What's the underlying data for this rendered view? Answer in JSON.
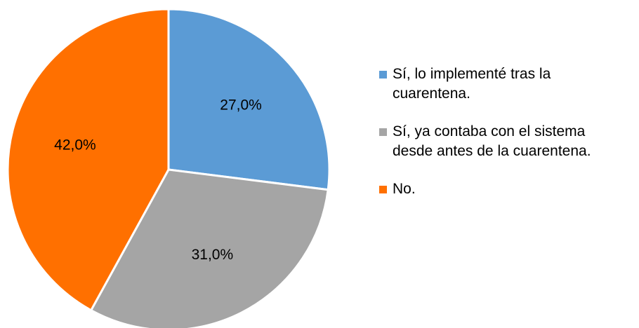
{
  "chart_data": {
    "type": "pie",
    "categories": [
      "Sí, lo implementé tras la cuarentena.",
      "Sí, ya contaba con el sistema desde antes de la cuarentena.",
      "No."
    ],
    "values": [
      27,
      31,
      42
    ],
    "value_labels": [
      "27,0%",
      "31,0%",
      "42,0%"
    ],
    "colors": [
      "#5b9bd5",
      "#a5a5a5",
      "#ff7000"
    ],
    "legend": "right"
  }
}
